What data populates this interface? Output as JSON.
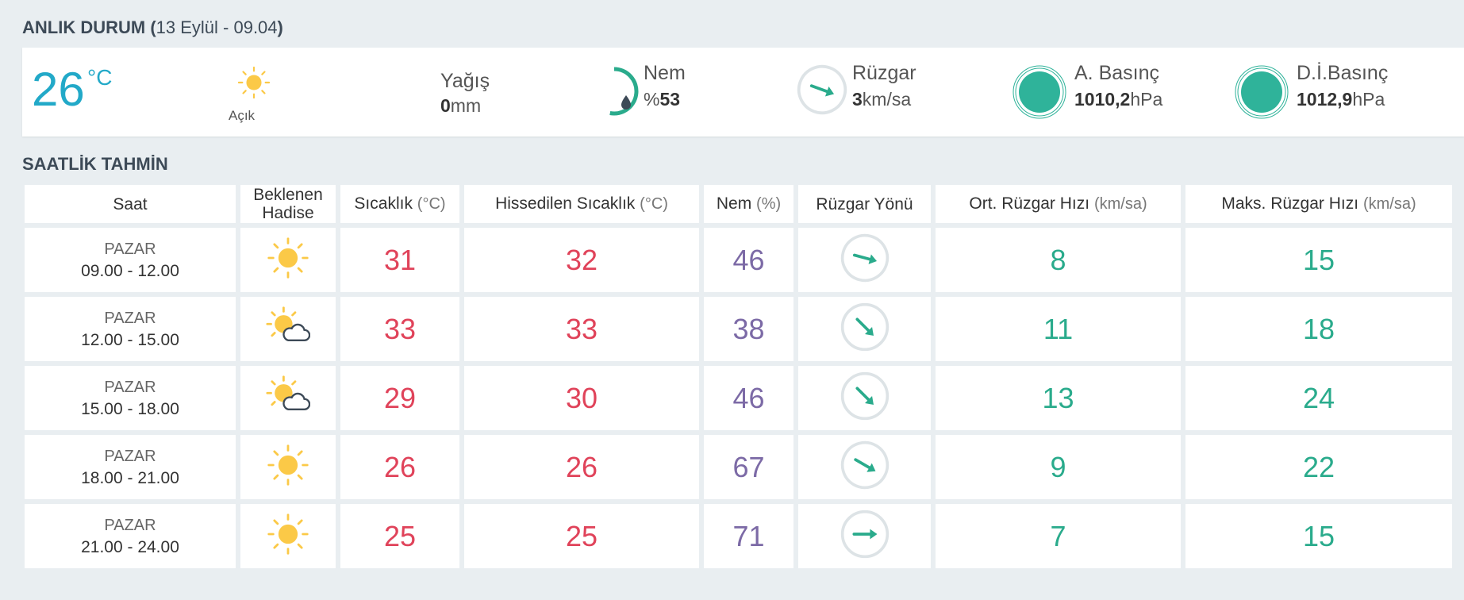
{
  "header": {
    "title": "ANLIK DURUM (",
    "date": "13 Eylül - 09.04",
    "close": ")"
  },
  "current": {
    "temperature": 26,
    "temperature_unit": "°C",
    "condition": "Açık",
    "rain": {
      "label": "Yağış",
      "value": 0,
      "unit": "mm"
    },
    "humidity": {
      "label": "Nem",
      "prefix": "%",
      "value": 53
    },
    "wind": {
      "label": "Rüzgar",
      "value": 3,
      "unit": "km/sa"
    },
    "pressure": {
      "label": "A. Basınç",
      "value": "1010,2",
      "unit": "hPa"
    },
    "sea_pressure": {
      "label": "D.İ.Basınç",
      "value": "1012,9",
      "unit": "hPa"
    }
  },
  "forecast": {
    "title": "SAATLİK TAHMİN",
    "columns": [
      {
        "label": "Saat"
      },
      {
        "label": "Beklenen Hadise"
      },
      {
        "label": "Sıcaklık",
        "unit": "(°C)"
      },
      {
        "label": "Hissedilen Sıcaklık",
        "unit": "(°C)"
      },
      {
        "label": "Nem",
        "unit": "(%)"
      },
      {
        "label": "Rüzgar Yönü"
      },
      {
        "label": "Ort. Rüzgar Hızı",
        "unit": "(km/sa)"
      },
      {
        "label": "Maks. Rüzgar Hızı",
        "unit": "(km/sa)"
      }
    ],
    "rows": [
      {
        "day": "PAZAR",
        "time": "09.00 - 12.00",
        "temperature": 31,
        "feels_like": 32,
        "humidity": 46,
        "wind_avg": 8,
        "wind_max": 15
      },
      {
        "day": "PAZAR",
        "time": "12.00 - 15.00",
        "temperature": 33,
        "feels_like": 33,
        "humidity": 38,
        "wind_avg": 11,
        "wind_max": 18
      },
      {
        "day": "PAZAR",
        "time": "15.00 - 18.00",
        "temperature": 29,
        "feels_like": 30,
        "humidity": 46,
        "wind_avg": 13,
        "wind_max": 24
      },
      {
        "day": "PAZAR",
        "time": "18.00 - 21.00",
        "temperature": 26,
        "feels_like": 26,
        "humidity": 67,
        "wind_avg": 9,
        "wind_max": 22
      },
      {
        "day": "PAZAR",
        "time": "21.00 - 24.00",
        "temperature": 25,
        "feels_like": 25,
        "humidity": 71,
        "wind_avg": 7,
        "wind_max": 15
      }
    ]
  }
}
